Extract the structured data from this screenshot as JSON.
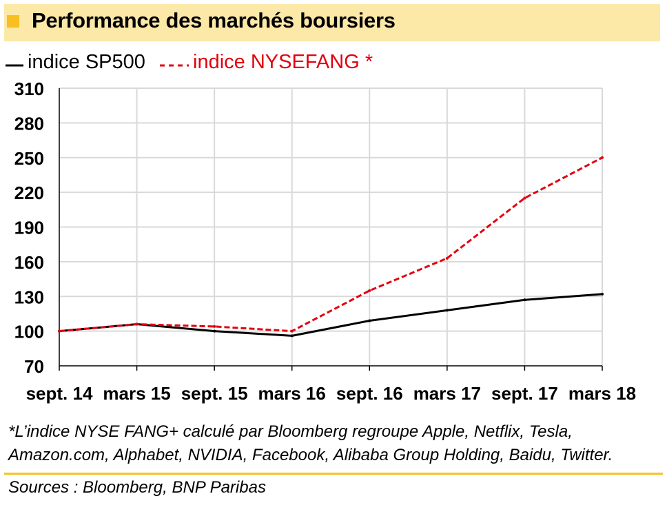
{
  "header": {
    "title": "Performance des marchés boursiers"
  },
  "legend": {
    "sp500_label": "indice SP500",
    "fang_label": "indice NYSEFANG *"
  },
  "footnote": {
    "line1": "*L’indice NYSE FANG+ calculé par Bloomberg regroupe Apple, Netflix, Tesla,",
    "line2": "Amazon.com, Alphabet, NVIDIA, Facebook, Alibaba Group Holding, Baidu, Twitter."
  },
  "source": "Sources : Bloomberg, BNP Paribas",
  "colors": {
    "title_band": "#fce9a8",
    "title_square": "#f7bf1f",
    "sp500": "#000000",
    "fang": "#e3000f",
    "grid": "#d9d9d9",
    "divider": "#f7c31f"
  },
  "chart_data": {
    "type": "line",
    "x": [
      "sept. 14",
      "mars 15",
      "sept. 15",
      "mars 16",
      "sept. 16",
      "mars 17",
      "sept. 17",
      "mars 18"
    ],
    "x_range": [
      "sept. 14",
      "mars 18"
    ],
    "ylim": [
      70,
      310
    ],
    "yticks": [
      70,
      100,
      130,
      160,
      190,
      220,
      250,
      280,
      310
    ],
    "grid": true,
    "legend_position": "top-left",
    "series": [
      {
        "name": "indice SP500",
        "style": "solid",
        "color": "#000000",
        "values": [
          100,
          106,
          100,
          96,
          109,
          118,
          127,
          132
        ]
      },
      {
        "name": "indice NYSEFANG *",
        "style": "dashed",
        "color": "#e3000f",
        "values": [
          100,
          106,
          104,
          100,
          135,
          163,
          215,
          250
        ]
      }
    ]
  }
}
